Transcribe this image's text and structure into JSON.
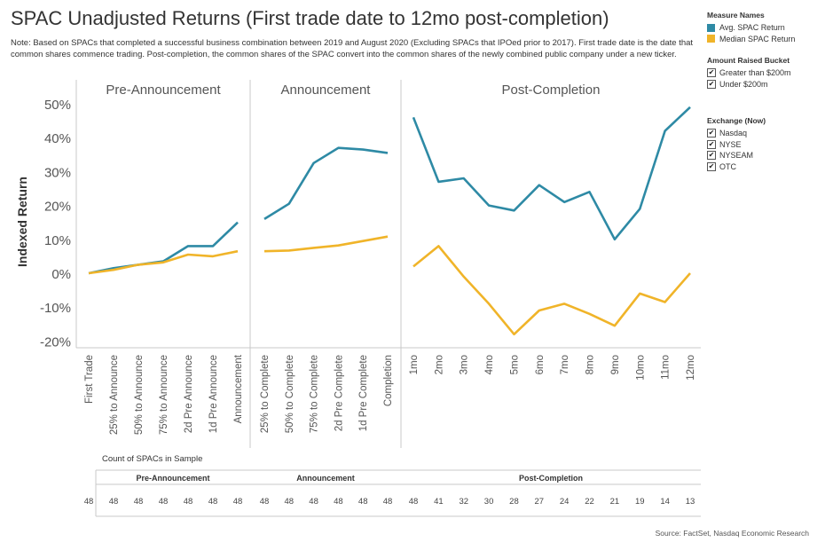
{
  "title": "SPAC Unadjusted Returns (First trade date to 12mo post-completion)",
  "note": "Note: Based on SPACs that completed a successful business combination between 2019 and August 2020 (Excluding SPACs that IPOed prior to 2017). First trade date is the date that common shares commence trading. Post-completion, the common shares of the SPAC convert into the common shares of the newly combined public company under a new ticker.",
  "legend": {
    "measure_title": "Measure Names",
    "measures": [
      {
        "label": "Avg. SPAC Return",
        "color": "#2e8aa5"
      },
      {
        "label": "Median SPAC Return",
        "color": "#f0b429"
      }
    ],
    "amount_title": "Amount Raised Bucket",
    "amount_items": [
      "Greater than $200m",
      "Under $200m"
    ],
    "exchange_title": "Exchange (Now)",
    "exchange_items": [
      "Nasdaq",
      "NYSE",
      "NYSEAM",
      "OTC"
    ],
    "check_glyph": "✔"
  },
  "count_table": {
    "title": "Count of SPACs in Sample"
  },
  "source": "Source: FactSet, Nasdaq Economic Research",
  "chart_data": {
    "type": "line",
    "ylabel": "Indexed Return",
    "ylim": [
      -20,
      50
    ],
    "yticks": [
      "50%",
      "40%",
      "30%",
      "20%",
      "10%",
      "0%",
      "-10%",
      "-20%"
    ],
    "ytick_values": [
      50,
      40,
      30,
      20,
      10,
      0,
      -10,
      -20
    ],
    "panels": [
      {
        "name": "Pre-Announcement",
        "categories": [
          "First Trade",
          "25% to Announce",
          "50% to Announce",
          "75% to Announce",
          "2d Pre Announce",
          "1d Pre Announce",
          "Announcement"
        ],
        "series": [
          {
            "name": "Avg. SPAC Return",
            "values": [
              0,
              1.5,
              2.5,
              3.5,
              8,
              8,
              15
            ]
          },
          {
            "name": "Median SPAC Return",
            "values": [
              0,
              1,
              2.5,
              3.2,
              5.5,
              5,
              6.5
            ]
          }
        ],
        "counts": [
          48,
          48,
          48,
          48,
          48,
          48,
          48
        ]
      },
      {
        "name": "Announcement",
        "categories": [
          "25% to Complete",
          "50% to Complete",
          "75% to Complete",
          "2d Pre Complete",
          "1d Pre Complete",
          "Completion"
        ],
        "series": [
          {
            "name": "Avg. SPAC Return",
            "values": [
              16,
              20.5,
              32.5,
              37,
              36.5,
              35.5
            ]
          },
          {
            "name": "Median SPAC Return",
            "values": [
              6.5,
              6.7,
              7.5,
              8.2,
              9.5,
              10.8
            ]
          }
        ],
        "counts": [
          48,
          48,
          48,
          48,
          48,
          48
        ]
      },
      {
        "name": "Post-Completion",
        "categories": [
          "1mo",
          "2mo",
          "3mo",
          "4mo",
          "5mo",
          "6mo",
          "7mo",
          "8mo",
          "9mo",
          "10mo",
          "11mo",
          "12mo"
        ],
        "series": [
          {
            "name": "Avg. SPAC Return",
            "values": [
              46,
              27,
              28,
              20,
              18.5,
              26,
              21,
              24,
              10,
              19,
              42,
              49
            ]
          },
          {
            "name": "Median SPAC Return",
            "values": [
              2,
              8,
              -1,
              -9,
              -18,
              -11,
              -9,
              -12,
              -15.5,
              -6,
              -8.5,
              0
            ]
          }
        ],
        "counts": [
          48,
          41,
          32,
          30,
          28,
          27,
          24,
          22,
          21,
          19,
          14,
          13
        ]
      }
    ]
  }
}
